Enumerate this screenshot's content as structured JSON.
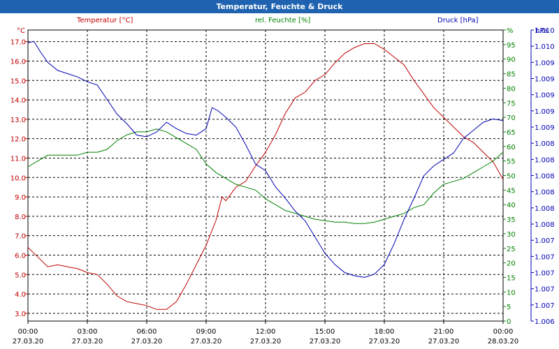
{
  "title": "Temperatur, Feuchte & Druck",
  "colors": {
    "title_bar": "#1f62b0",
    "temperature": "#c00000",
    "humidity": "#008000",
    "pressure": "#0000b4",
    "grid": "#000000"
  },
  "chart_data": {
    "type": "line",
    "title": "Temperatur, Feuchte & Druck",
    "grid": true,
    "x_ticks": [
      {
        "time": "00:00",
        "date": "27.03.20"
      },
      {
        "time": "03:00",
        "date": "27.03.20"
      },
      {
        "time": "06:00",
        "date": "27.03.20"
      },
      {
        "time": "09:00",
        "date": "27.03.20"
      },
      {
        "time": "12:00",
        "date": "27.03.20"
      },
      {
        "time": "15:00",
        "date": "27.03.20"
      },
      {
        "time": "18:00",
        "date": "27.03.20"
      },
      {
        "time": "21:00",
        "date": "27.03.20"
      },
      {
        "time": "00:00",
        "date": "28.03.20"
      }
    ],
    "x_range_hours": [
      0,
      24
    ],
    "axes": {
      "temperature": {
        "header": "Temperatur [°C]",
        "unit": "°C",
        "range": [
          2.6,
          17.6
        ],
        "ticks": [
          "3.0",
          "4.0",
          "5.0",
          "6.0",
          "7.0",
          "8.0",
          "9.0",
          "10.0",
          "11.0",
          "12.0",
          "13.0",
          "14.0",
          "15.0",
          "16.0",
          "17.0"
        ]
      },
      "humidity": {
        "header": "rel. Feuchte [%]",
        "unit": "%",
        "range": [
          0,
          100
        ],
        "ticks": [
          "0",
          "5",
          "10",
          "15",
          "20",
          "25",
          "30",
          "35",
          "40",
          "45",
          "50",
          "55",
          "60",
          "65",
          "70",
          "75",
          "80",
          "85",
          "90",
          "95",
          "%"
        ]
      },
      "pressure": {
        "header": "Druck [hPa]",
        "unit": "hPa",
        "range": [
          0,
          18
        ],
        "ticks": [
          "1.006",
          "1.007",
          "1.007",
          "1.007",
          "1.007",
          "1.007",
          "1.008",
          "1.008",
          "1.008",
          "1.008",
          "1.008",
          "1.008",
          "1.009",
          "1.009",
          "1.009",
          "1.009",
          "1.009",
          "1.010",
          "1.010"
        ]
      }
    },
    "series": [
      {
        "name": "Temperatur [°C]",
        "axis": "temperature",
        "points": [
          [
            0,
            6.4
          ],
          [
            0.5,
            5.9
          ],
          [
            1,
            5.4
          ],
          [
            1.5,
            5.5
          ],
          [
            2,
            5.4
          ],
          [
            2.5,
            5.3
          ],
          [
            3,
            5.1
          ],
          [
            3.5,
            5.0
          ],
          [
            4,
            4.5
          ],
          [
            4.5,
            3.9
          ],
          [
            5,
            3.6
          ],
          [
            5.5,
            3.5
          ],
          [
            6,
            3.4
          ],
          [
            6.5,
            3.2
          ],
          [
            7,
            3.2
          ],
          [
            7.5,
            3.6
          ],
          [
            8,
            4.5
          ],
          [
            8.5,
            5.5
          ],
          [
            9,
            6.5
          ],
          [
            9.5,
            7.8
          ],
          [
            9.8,
            9.0
          ],
          [
            10,
            8.8
          ],
          [
            10.5,
            9.5
          ],
          [
            11,
            9.8
          ],
          [
            11.5,
            10.6
          ],
          [
            12,
            11.3
          ],
          [
            12.5,
            12.2
          ],
          [
            13,
            13.3
          ],
          [
            13.5,
            14.1
          ],
          [
            14,
            14.4
          ],
          [
            14.5,
            15.0
          ],
          [
            15,
            15.3
          ],
          [
            15.5,
            15.9
          ],
          [
            16,
            16.4
          ],
          [
            16.5,
            16.7
          ],
          [
            17,
            16.9
          ],
          [
            17.5,
            16.9
          ],
          [
            18,
            16.6
          ],
          [
            18.5,
            16.2
          ],
          [
            19,
            15.8
          ],
          [
            19.5,
            15.0
          ],
          [
            20,
            14.3
          ],
          [
            20.5,
            13.6
          ],
          [
            21,
            13.1
          ],
          [
            21.5,
            12.6
          ],
          [
            22,
            12.1
          ],
          [
            22.5,
            11.8
          ],
          [
            23,
            11.3
          ],
          [
            23.5,
            10.8
          ],
          [
            24,
            9.9
          ]
        ]
      },
      {
        "name": "rel. Feuchte [%]",
        "axis": "humidity",
        "points": [
          [
            0,
            53
          ],
          [
            0.5,
            55
          ],
          [
            1,
            57
          ],
          [
            1.5,
            57
          ],
          [
            2,
            57
          ],
          [
            2.5,
            57
          ],
          [
            3,
            58
          ],
          [
            3.5,
            58
          ],
          [
            4,
            59
          ],
          [
            4.5,
            62
          ],
          [
            5,
            64
          ],
          [
            5.5,
            65
          ],
          [
            6,
            65
          ],
          [
            6.5,
            66
          ],
          [
            7,
            65
          ],
          [
            7.5,
            63
          ],
          [
            8,
            61
          ],
          [
            8.5,
            59
          ],
          [
            9,
            54
          ],
          [
            9.5,
            51
          ],
          [
            10,
            49
          ],
          [
            10.5,
            47
          ],
          [
            11,
            46
          ],
          [
            11.5,
            45
          ],
          [
            12,
            42
          ],
          [
            12.5,
            40
          ],
          [
            13,
            38
          ],
          [
            13.5,
            37
          ],
          [
            14,
            36
          ],
          [
            14.5,
            35
          ],
          [
            15,
            34.5
          ],
          [
            15.5,
            34
          ],
          [
            16,
            34
          ],
          [
            16.5,
            33.5
          ],
          [
            17,
            33.5
          ],
          [
            17.5,
            34
          ],
          [
            18,
            35
          ],
          [
            18.5,
            36
          ],
          [
            19,
            37
          ],
          [
            19.5,
            39
          ],
          [
            20,
            40
          ],
          [
            20.5,
            44
          ],
          [
            21,
            47
          ],
          [
            21.5,
            48
          ],
          [
            22,
            49
          ],
          [
            22.5,
            51
          ],
          [
            23,
            53
          ],
          [
            23.5,
            55
          ],
          [
            24,
            58
          ]
        ]
      },
      {
        "name": "Druck [hPa]",
        "axis": "pressure",
        "points": [
          [
            0,
            17.2
          ],
          [
            0.3,
            17.3
          ],
          [
            0.6,
            16.7
          ],
          [
            1,
            16.0
          ],
          [
            1.5,
            15.5
          ],
          [
            2,
            15.3
          ],
          [
            2.5,
            15.1
          ],
          [
            3,
            14.8
          ],
          [
            3.5,
            14.6
          ],
          [
            4,
            13.7
          ],
          [
            4.5,
            12.8
          ],
          [
            5,
            12.2
          ],
          [
            5.5,
            11.5
          ],
          [
            6,
            11.4
          ],
          [
            6.5,
            11.7
          ],
          [
            7,
            12.3
          ],
          [
            7.5,
            11.9
          ],
          [
            8,
            11.6
          ],
          [
            8.5,
            11.5
          ],
          [
            9,
            11.9
          ],
          [
            9.3,
            13.2
          ],
          [
            9.6,
            13.0
          ],
          [
            10,
            12.6
          ],
          [
            10.5,
            12.0
          ],
          [
            11,
            10.9
          ],
          [
            11.5,
            9.7
          ],
          [
            12,
            9.3
          ],
          [
            12.5,
            8.3
          ],
          [
            13,
            7.6
          ],
          [
            13.5,
            6.8
          ],
          [
            14,
            6.2
          ],
          [
            14.5,
            5.2
          ],
          [
            15,
            4.2
          ],
          [
            15.5,
            3.5
          ],
          [
            16,
            3.0
          ],
          [
            16.5,
            2.8
          ],
          [
            17,
            2.7
          ],
          [
            17.5,
            2.9
          ],
          [
            18,
            3.5
          ],
          [
            18.5,
            4.8
          ],
          [
            19,
            6.3
          ],
          [
            19.5,
            7.6
          ],
          [
            20,
            9.0
          ],
          [
            20.5,
            9.6
          ],
          [
            21,
            10.0
          ],
          [
            21.5,
            10.4
          ],
          [
            22,
            11.3
          ],
          [
            22.5,
            11.8
          ],
          [
            23,
            12.3
          ],
          [
            23.5,
            12.5
          ],
          [
            24,
            12.4
          ]
        ]
      }
    ]
  }
}
